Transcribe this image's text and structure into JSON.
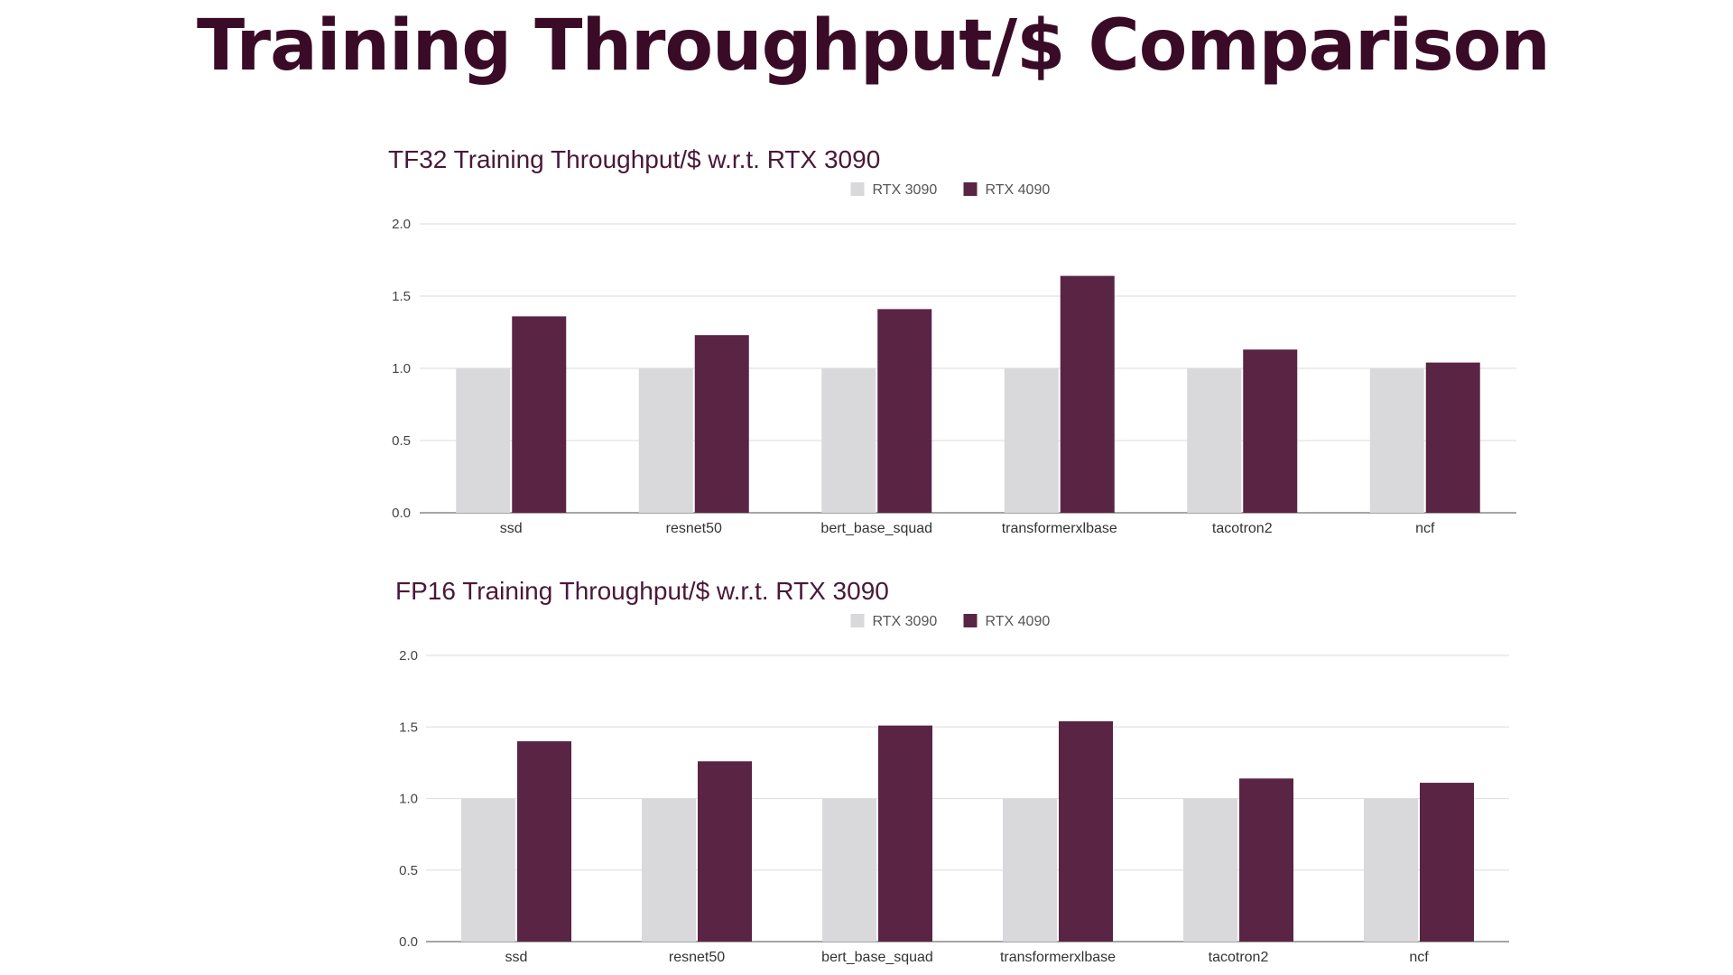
{
  "slide": {
    "title": "Training Throughput/$ Comparison"
  },
  "colors": {
    "title": "#3a0b26",
    "rtx3090": "#d9d9dc",
    "rtx4090": "#5a2445",
    "grid": "#e2e2e2",
    "axis": "#888888"
  },
  "chart_data": [
    {
      "type": "bar",
      "title": "TF32 Training Throughput/$ w.r.t. RTX 3090",
      "xlabel": "",
      "ylabel": "",
      "ylim": [
        0,
        2.0
      ],
      "yticks": [
        "2.0",
        "1.5",
        "1.0",
        "0.5",
        "0.0"
      ],
      "grid": true,
      "legend_position": "top-center",
      "categories": [
        "ssd",
        "resnet50",
        "bert_base_squad",
        "transformerxlbase",
        "tacotron2",
        "ncf"
      ],
      "series": [
        {
          "name": "RTX 3090",
          "color": "#d9d9dc",
          "values": [
            1.0,
            1.0,
            1.0,
            1.0,
            1.0,
            1.0
          ]
        },
        {
          "name": "RTX 4090",
          "color": "#5a2445",
          "values": [
            1.36,
            1.23,
            1.41,
            1.64,
            1.13,
            1.04
          ]
        }
      ]
    },
    {
      "type": "bar",
      "title": "FP16 Training Throughput/$ w.r.t. RTX 3090",
      "xlabel": "",
      "ylabel": "",
      "ylim": [
        0,
        2.0
      ],
      "yticks": [
        "2.0",
        "1.5",
        "1.0",
        "0.5",
        "0.0"
      ],
      "grid": true,
      "legend_position": "top-center",
      "categories": [
        "ssd",
        "resnet50",
        "bert_base_squad",
        "transformerxlbase",
        "tacotron2",
        "ncf"
      ],
      "series": [
        {
          "name": "RTX 3090",
          "color": "#d9d9dc",
          "values": [
            1.0,
            1.0,
            1.0,
            1.0,
            1.0,
            1.0
          ]
        },
        {
          "name": "RTX 4090",
          "color": "#5a2445",
          "values": [
            1.4,
            1.26,
            1.51,
            1.54,
            1.14,
            1.11
          ]
        }
      ]
    }
  ]
}
